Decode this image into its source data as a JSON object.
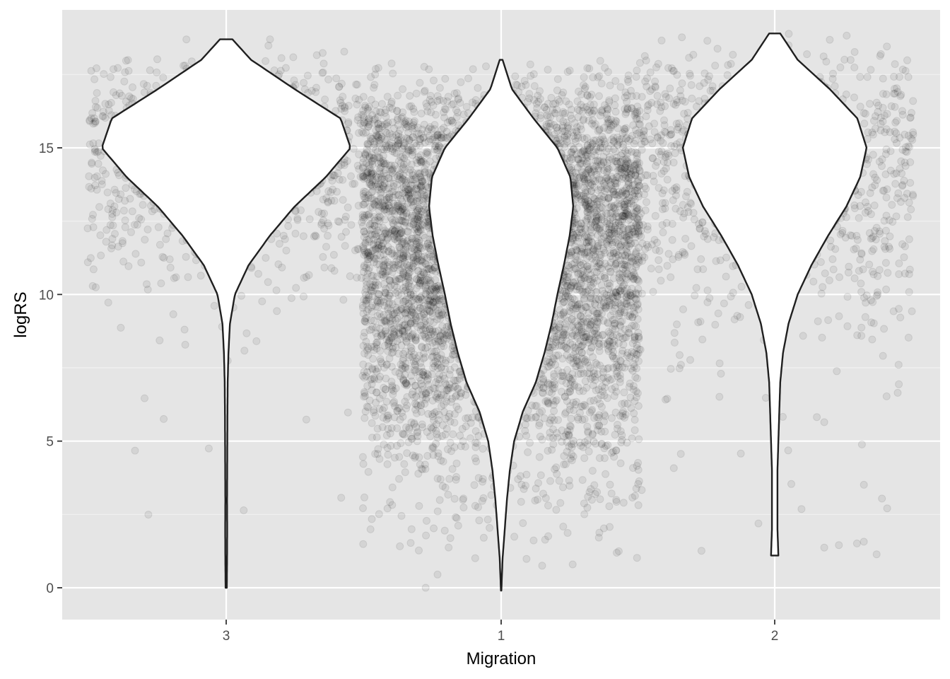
{
  "chart_data": {
    "type": "violin",
    "xlabel": "Migration",
    "ylabel": "logRS",
    "categories": [
      "3",
      "1",
      "2"
    ],
    "yticks": [
      0,
      5,
      10,
      15
    ],
    "ylim": [
      -1.06,
      19.7
    ],
    "grid": true,
    "background": "#e5e5e5",
    "overlay": "jittered points (alpha ~0.08)",
    "groups": [
      {
        "category": "3",
        "n_points_approx": 900,
        "min": 0.0,
        "max": 18.7,
        "density_profile": [
          [
            0,
            0.005
          ],
          [
            1,
            0.007
          ],
          [
            2,
            0.008
          ],
          [
            3,
            0.007
          ],
          [
            4,
            0.008
          ],
          [
            5,
            0.009
          ],
          [
            6,
            0.01
          ],
          [
            7,
            0.012
          ],
          [
            8,
            0.018
          ],
          [
            9,
            0.03
          ],
          [
            10,
            0.07
          ],
          [
            11,
            0.18
          ],
          [
            12,
            0.35
          ],
          [
            13,
            0.55
          ],
          [
            14,
            0.8
          ],
          [
            15,
            1.0
          ],
          [
            16,
            0.92
          ],
          [
            17,
            0.55
          ],
          [
            18,
            0.2
          ],
          [
            18.7,
            0.05
          ]
        ]
      },
      {
        "category": "1",
        "n_points_approx": 6000,
        "min": -0.1,
        "max": 18.0,
        "density_profile": [
          [
            -0.1,
            0.003
          ],
          [
            1,
            0.02
          ],
          [
            2,
            0.05
          ],
          [
            3,
            0.08
          ],
          [
            4,
            0.12
          ],
          [
            5,
            0.18
          ],
          [
            6,
            0.3
          ],
          [
            7,
            0.48
          ],
          [
            8,
            0.6
          ],
          [
            9,
            0.7
          ],
          [
            10,
            0.78
          ],
          [
            11,
            0.87
          ],
          [
            12,
            0.95
          ],
          [
            13,
            1.0
          ],
          [
            14,
            0.96
          ],
          [
            15,
            0.78
          ],
          [
            16,
            0.45
          ],
          [
            17,
            0.15
          ],
          [
            18,
            0.02
          ]
        ]
      },
      {
        "category": "2",
        "n_points_approx": 1100,
        "min": 1.1,
        "max": 18.9,
        "density_profile": [
          [
            1.1,
            0.04
          ],
          [
            2,
            0.03
          ],
          [
            3,
            0.03
          ],
          [
            4,
            0.03
          ],
          [
            5,
            0.04
          ],
          [
            6,
            0.05
          ],
          [
            7,
            0.06
          ],
          [
            8,
            0.09
          ],
          [
            9,
            0.15
          ],
          [
            10,
            0.25
          ],
          [
            11,
            0.4
          ],
          [
            12,
            0.58
          ],
          [
            13,
            0.78
          ],
          [
            14,
            0.93
          ],
          [
            15,
            1.0
          ],
          [
            16,
            0.9
          ],
          [
            17,
            0.6
          ],
          [
            18,
            0.25
          ],
          [
            18.9,
            0.06
          ]
        ]
      }
    ]
  }
}
